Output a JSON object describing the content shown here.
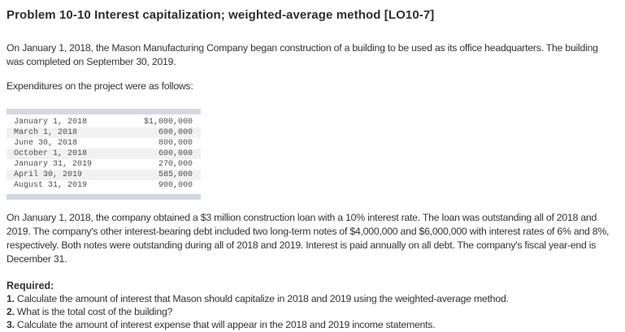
{
  "page": {
    "title": "Problem 10-10 Interest capitalization; weighted-average method [LO10-7]",
    "intro_paragraph": "On January 1, 2018, the Mason Manufacturing Company began construction of a building to be used as its office headquarters. The building was completed on September 30, 2019.",
    "expenditures_intro": "Expenditures on the project were as follows:",
    "expenditures_table": {
      "columns": [
        "date",
        "amount"
      ],
      "rows": [
        {
          "date": "January 1, 2018",
          "amount": "$1,000,000"
        },
        {
          "date": "March 1, 2018",
          "amount": "600,000"
        },
        {
          "date": "June 30, 2018",
          "amount": "800,000"
        },
        {
          "date": "October 1, 2018",
          "amount": "600,000"
        },
        {
          "date": "January 31, 2019",
          "amount": "270,000"
        },
        {
          "date": "April 30, 2019",
          "amount": "585,000"
        },
        {
          "date": "August 31, 2019",
          "amount": "900,000"
        }
      ]
    },
    "details_paragraph": "On January 1, 2018, the company obtained a $3 million construction loan with a 10% interest rate. The loan was outstanding all of 2018 and 2019. The company's other interest-bearing debt included two long-term notes of $4,000,000 and $6,000,000 with interest rates of 6% and 8%, respectively. Both notes were outstanding during all of 2018 and 2019. Interest is paid annually on all debt. The company's fiscal year-end is December 31.",
    "required": {
      "label": "Required:",
      "items": [
        {
          "number": "1.",
          "text": " Calculate the amount of interest that Mason should capitalize in 2018 and 2019 using the weighted-average method."
        },
        {
          "number": "2.",
          "text": " What is the total cost of the building?"
        },
        {
          "number": "3.",
          "text": " Calculate the amount of interest expense that will appear in the 2018 and 2019 income statements."
        }
      ]
    }
  },
  "colors": {
    "text": "#333333",
    "title_text": "#2e2e2e",
    "table_bar": "#d4d8e2",
    "row_stripe": "#f1f1f2",
    "table_text": "#4d4d4d",
    "page_bg": "#ffffff"
  }
}
